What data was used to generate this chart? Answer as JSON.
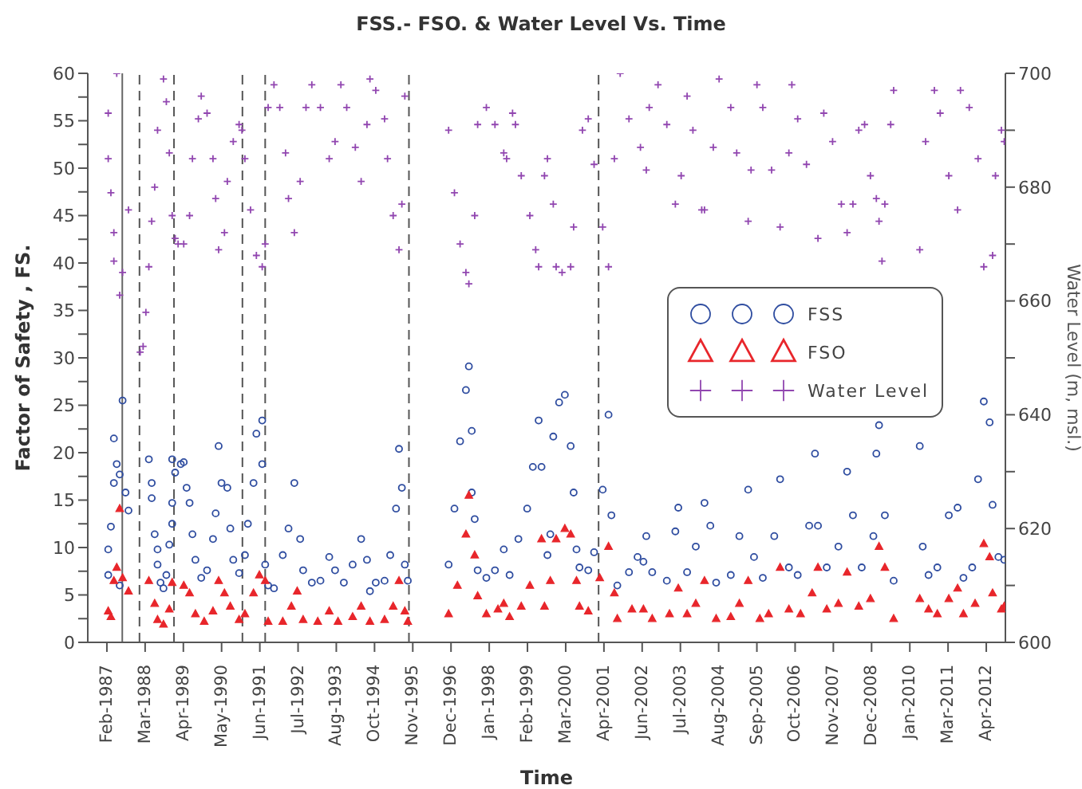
{
  "chart_data": {
    "type": "scatter",
    "title": "FSS.- FSO. & Water Level Vs. Time",
    "xlabel": "Time",
    "ylabel": "Factor of Safety , FS.",
    "y2label": "Water Level (m, msl.)",
    "xlim": [
      "1986-07-16",
      "2012-10-27"
    ],
    "xticks": [
      {
        "value": "1987-02-01",
        "label": "Feb-1987"
      },
      {
        "value": "1988-03-07",
        "label": "Mar-1988"
      },
      {
        "value": "1989-04-11",
        "label": "Apr-1989"
      },
      {
        "value": "1990-05-16",
        "label": "May-1990"
      },
      {
        "value": "1991-06-20",
        "label": "Jun-1991"
      },
      {
        "value": "1992-07-24",
        "label": "Jul-1992"
      },
      {
        "value": "1993-08-28",
        "label": "Aug-1993"
      },
      {
        "value": "1994-10-02",
        "label": "Oct-1994"
      },
      {
        "value": "1995-11-06",
        "label": "Nov-1995"
      },
      {
        "value": "1996-12-10",
        "label": "Dec-1996"
      },
      {
        "value": "1998-01-14",
        "label": "Jan-1998"
      },
      {
        "value": "1999-02-18",
        "label": "Feb-1999"
      },
      {
        "value": "2000-03-24",
        "label": "Mar-2000"
      },
      {
        "value": "2001-04-28",
        "label": "Apr-2001"
      },
      {
        "value": "2002-06-02",
        "label": "Jun-2002"
      },
      {
        "value": "2003-07-07",
        "label": "Jul-2003"
      },
      {
        "value": "2004-08-10",
        "label": "Aug-2004"
      },
      {
        "value": "2005-09-14",
        "label": "Sep-2005"
      },
      {
        "value": "2006-10-19",
        "label": "Oct-2006"
      },
      {
        "value": "2007-11-23",
        "label": "Nov-2007"
      },
      {
        "value": "2008-12-27",
        "label": "Dec-2008"
      },
      {
        "value": "2010-01-31",
        "label": "Jan-2010"
      },
      {
        "value": "2011-03-07",
        "label": "Mar-2011"
      },
      {
        "value": "2012-04-10",
        "label": "Apr-2012"
      }
    ],
    "ylim": [
      0,
      60
    ],
    "yticks": [
      0,
      {
        "value": 2.5,
        "label": null
      },
      5,
      {
        "value": 7.5,
        "label": null
      },
      10,
      {
        "value": 12.5,
        "label": null
      },
      15,
      {
        "value": 17.5,
        "label": null
      },
      20,
      {
        "value": 22.5,
        "label": null
      },
      25,
      {
        "value": 27.5,
        "label": null
      },
      30,
      {
        "value": 32.5,
        "label": null
      },
      35,
      {
        "value": 37.5,
        "label": null
      },
      40,
      {
        "value": 42.5,
        "label": null
      },
      45,
      {
        "value": 47.5,
        "label": null
      },
      50,
      {
        "value": 52.5,
        "label": null
      },
      55,
      {
        "value": 57.5,
        "label": null
      },
      60
    ],
    "y2lim": [
      600,
      700
    ],
    "y2ticks": [
      600,
      {
        "value": 610,
        "label": null
      },
      620,
      {
        "value": 630,
        "label": null
      },
      640,
      {
        "value": 650,
        "label": null
      },
      660,
      {
        "value": 670,
        "label": null
      },
      680,
      {
        "value": 690,
        "label": null
      },
      700
    ],
    "legend": "right",
    "series": [
      {
        "name": "FSS",
        "color": "#2f4da0",
        "marker": "circle",
        "x": [
          "1987-02",
          "1987-02",
          "1987-03",
          "1987-04",
          "1987-04",
          "1987-05",
          "1987-06",
          "1987-06",
          "1987-07",
          "1987-08",
          "1987-09",
          "1988-04",
          "1988-05",
          "1988-05",
          "1988-06",
          "1988-07",
          "1988-07",
          "1988-08",
          "1988-09",
          "1988-10",
          "1988-11",
          "1988-12",
          "1988-12",
          "1988-12",
          "1989-01",
          "1989-03",
          "1989-04",
          "1989-05",
          "1989-06",
          "1989-07",
          "1989-08",
          "1989-10",
          "1989-12",
          "1990-02",
          "1990-03",
          "1990-04",
          "1990-05",
          "1990-07",
          "1990-08",
          "1990-09",
          "1990-11",
          "1991-01",
          "1991-02",
          "1991-04",
          "1991-05",
          "1991-07",
          "1991-07",
          "1991-08",
          "1991-09",
          "1991-11",
          "1992-02",
          "1992-04",
          "1992-06",
          "1992-08",
          "1992-09",
          "1992-12",
          "1993-03",
          "1993-06",
          "1993-08",
          "1993-11",
          "1994-02",
          "1994-05",
          "1994-07",
          "1994-08",
          "1994-10",
          "1995-01",
          "1995-03",
          "1995-05",
          "1995-06",
          "1995-07",
          "1995-08",
          "1995-09",
          "1996-11",
          "1997-01",
          "1997-03",
          "1997-05",
          "1997-06",
          "1997-07",
          "1997-07",
          "1997-08",
          "1997-09",
          "1997-12",
          "1998-03",
          "1998-06",
          "1998-08",
          "1998-11",
          "1999-02",
          "1999-04",
          "1999-06",
          "1999-07",
          "1999-09",
          "1999-10",
          "1999-11",
          "2000-01",
          "2000-03",
          "2000-05",
          "2000-06",
          "2000-07",
          "2000-08",
          "2000-11",
          "2001-01",
          "2001-04",
          "2001-06",
          "2001-07",
          "2001-09",
          "2002-01",
          "2002-04",
          "2002-06",
          "2002-07",
          "2002-09",
          "2003-02",
          "2003-05",
          "2003-06",
          "2003-09",
          "2003-12",
          "2004-03",
          "2004-05",
          "2004-07",
          "2004-12",
          "2005-03",
          "2005-06",
          "2005-08",
          "2005-11",
          "2006-03",
          "2006-05",
          "2006-08",
          "2006-11",
          "2007-03",
          "2007-05",
          "2007-06",
          "2007-09",
          "2008-01",
          "2008-04",
          "2008-06",
          "2008-09",
          "2009-01",
          "2009-02",
          "2009-03",
          "2009-05",
          "2009-08",
          "2010-05",
          "2010-06",
          "2010-08",
          "2010-11",
          "2011-03",
          "2011-06",
          "2011-08",
          "2011-11",
          "2012-01",
          "2012-03",
          "2012-05",
          "2012-06",
          "2012-08",
          "2012-10"
        ],
        "values": [
          7.1,
          9.8,
          12.2,
          21.5,
          16.8,
          18.8,
          6.0,
          17.7,
          25.5,
          15.8,
          13.9,
          19.3,
          16.8,
          15.2,
          11.4,
          9.8,
          8.2,
          6.3,
          5.7,
          7.1,
          10.3,
          12.5,
          14.7,
          19.3,
          17.9,
          18.8,
          19.0,
          16.3,
          14.7,
          11.4,
          8.7,
          6.8,
          7.6,
          10.9,
          13.6,
          20.7,
          16.8,
          16.3,
          12.0,
          8.7,
          7.3,
          9.2,
          12.5,
          16.8,
          22.0,
          23.4,
          18.8,
          8.2,
          6.0,
          5.7,
          9.2,
          12.0,
          16.8,
          10.9,
          7.6,
          6.3,
          6.5,
          9.0,
          7.6,
          6.3,
          8.2,
          10.9,
          8.7,
          5.4,
          6.3,
          6.5,
          9.2,
          14.1,
          20.4,
          16.3,
          8.2,
          6.5,
          8.2,
          14.1,
          21.2,
          26.6,
          29.1,
          22.3,
          15.8,
          13.0,
          7.6,
          6.8,
          7.6,
          9.8,
          7.1,
          10.9,
          14.1,
          18.5,
          23.4,
          18.5,
          9.2,
          11.4,
          21.7,
          25.3,
          26.1,
          20.7,
          15.8,
          9.8,
          7.9,
          7.6,
          9.5,
          16.1,
          24.0,
          13.4,
          6.0,
          7.4,
          9.0,
          8.5,
          11.2,
          7.4,
          6.5,
          11.7,
          14.2,
          7.4,
          10.1,
          14.7,
          12.3,
          6.3,
          7.1,
          11.2,
          16.1,
          9.0,
          6.8,
          11.2,
          17.2,
          7.9,
          7.1,
          12.3,
          19.9,
          12.3,
          7.9,
          10.1,
          18.0,
          13.4,
          7.9,
          11.2,
          19.9,
          22.9,
          13.4,
          6.5,
          20.7,
          10.1,
          7.1,
          7.9,
          13.4,
          14.2,
          6.8,
          7.9,
          17.2,
          25.4,
          23.2,
          14.5,
          9.0,
          8.7
        ]
      },
      {
        "name": "FSO",
        "color": "#e8262b",
        "marker": "triangle",
        "x": [
          "1987-02",
          "1987-03",
          "1987-04",
          "1987-05",
          "1987-06",
          "1987-07",
          "1987-09",
          "1988-04",
          "1988-06",
          "1988-07",
          "1988-09",
          "1988-11",
          "1988-12",
          "1989-04",
          "1989-06",
          "1989-08",
          "1989-11",
          "1990-02",
          "1990-04",
          "1990-06",
          "1990-08",
          "1990-11",
          "1991-01",
          "1991-04",
          "1991-06",
          "1991-08",
          "1991-09",
          "1992-02",
          "1992-05",
          "1992-07",
          "1992-09",
          "1993-02",
          "1993-06",
          "1993-09",
          "1994-02",
          "1994-05",
          "1994-08",
          "1995-01",
          "1995-04",
          "1995-06",
          "1995-08",
          "1995-09",
          "1996-11",
          "1997-02",
          "1997-05",
          "1997-06",
          "1997-08",
          "1997-09",
          "1997-12",
          "1998-04",
          "1998-06",
          "1998-08",
          "1998-12",
          "1999-03",
          "1999-07",
          "1999-08",
          "1999-10",
          "1999-12",
          "2000-03",
          "2000-05",
          "2000-07",
          "2000-08",
          "2000-11",
          "2001-03",
          "2001-06",
          "2001-08",
          "2001-09",
          "2002-02",
          "2002-06",
          "2002-09",
          "2003-03",
          "2003-06",
          "2003-09",
          "2003-12",
          "2004-03",
          "2004-07",
          "2004-12",
          "2005-03",
          "2005-06",
          "2005-10",
          "2006-01",
          "2006-05",
          "2006-08",
          "2006-12",
          "2007-04",
          "2007-06",
          "2007-09",
          "2008-01",
          "2008-04",
          "2008-08",
          "2008-12",
          "2009-03",
          "2009-05",
          "2009-08",
          "2010-05",
          "2010-08",
          "2010-11",
          "2011-03",
          "2011-06",
          "2011-08",
          "2011-12",
          "2012-03",
          "2012-05",
          "2012-06",
          "2012-09",
          "2012-10"
        ],
        "values": [
          3.3,
          2.7,
          6.5,
          7.9,
          14.1,
          6.8,
          5.4,
          6.5,
          4.1,
          2.4,
          1.9,
          3.5,
          6.3,
          6.0,
          5.2,
          3.0,
          2.2,
          3.3,
          6.5,
          5.2,
          3.8,
          2.4,
          3.0,
          5.2,
          7.1,
          6.5,
          2.2,
          2.2,
          3.8,
          5.4,
          2.4,
          2.2,
          3.3,
          2.2,
          2.7,
          3.8,
          2.2,
          2.4,
          3.8,
          6.5,
          3.3,
          2.2,
          3.0,
          6.0,
          11.4,
          15.5,
          9.2,
          4.9,
          3.0,
          3.5,
          4.1,
          2.7,
          3.8,
          6.0,
          10.9,
          3.8,
          6.5,
          10.9,
          12.0,
          11.4,
          6.5,
          3.8,
          3.3,
          6.8,
          10.1,
          5.2,
          2.5,
          3.5,
          3.5,
          2.5,
          3.0,
          5.7,
          3.0,
          4.1,
          6.5,
          2.5,
          2.7,
          4.1,
          6.5,
          2.5,
          3.0,
          7.9,
          3.5,
          3.0,
          5.2,
          7.9,
          3.5,
          4.1,
          7.4,
          3.8,
          4.6,
          10.1,
          7.9,
          2.5,
          4.6,
          3.5,
          3.0,
          4.6,
          5.7,
          3.0,
          4.1,
          10.4,
          9.0,
          5.2,
          3.5,
          3.8
        ]
      },
      {
        "name": "Water Level",
        "color": "#9146b0",
        "marker": "cross",
        "axis": "y2",
        "x": [
          "1987-02",
          "1987-02",
          "1987-03",
          "1987-04",
          "1987-04",
          "1987-05",
          "1987-06",
          "1987-07",
          "1987-09",
          "1988-01",
          "1988-02",
          "1988-03",
          "1988-04",
          "1988-05",
          "1988-06",
          "1988-07",
          "1988-09",
          "1988-10",
          "1988-11",
          "1988-12",
          "1989-01",
          "1989-02",
          "1989-04",
          "1989-06",
          "1989-07",
          "1989-09",
          "1989-10",
          "1989-12",
          "1990-02",
          "1990-03",
          "1990-04",
          "1990-06",
          "1990-07",
          "1990-09",
          "1990-11",
          "1990-12",
          "1991-01",
          "1991-03",
          "1991-05",
          "1991-07",
          "1991-08",
          "1991-09",
          "1991-11",
          "1992-01",
          "1992-03",
          "1992-04",
          "1992-06",
          "1992-08",
          "1992-10",
          "1992-12",
          "1993-03",
          "1993-06",
          "1993-08",
          "1993-10",
          "1993-12",
          "1994-03",
          "1994-05",
          "1994-07",
          "1994-08",
          "1994-10",
          "1995-01",
          "1995-02",
          "1995-04",
          "1995-06",
          "1995-07",
          "1995-08",
          "1996-11",
          "1997-01",
          "1997-03",
          "1997-05",
          "1997-06",
          "1997-08",
          "1997-09",
          "1997-12",
          "1998-03",
          "1998-06",
          "1998-07",
          "1998-09",
          "1998-10",
          "1998-12",
          "1999-03",
          "1999-05",
          "1999-06",
          "1999-08",
          "1999-09",
          "1999-11",
          "1999-12",
          "2000-02",
          "2000-05",
          "2000-06",
          "2000-09",
          "2000-11",
          "2001-01",
          "2001-04",
          "2001-06",
          "2001-08",
          "2001-10",
          "2002-01",
          "2002-05",
          "2002-07",
          "2002-08",
          "2002-11",
          "2003-02",
          "2003-05",
          "2003-07",
          "2003-09",
          "2003-11",
          "2004-02",
          "2004-03",
          "2004-06",
          "2004-08",
          "2004-12",
          "2005-02",
          "2005-06",
          "2005-07",
          "2005-09",
          "2005-11",
          "2006-02",
          "2006-05",
          "2006-08",
          "2006-09",
          "2006-11",
          "2007-02",
          "2007-06",
          "2007-08",
          "2007-11",
          "2008-02",
          "2008-04",
          "2008-06",
          "2008-08",
          "2008-10",
          "2008-12",
          "2009-02",
          "2009-03",
          "2009-04",
          "2009-05",
          "2009-07",
          "2009-08",
          "2010-05",
          "2010-07",
          "2010-10",
          "2010-12",
          "2011-03",
          "2011-06",
          "2011-07",
          "2011-10",
          "2012-01",
          "2012-03",
          "2012-06",
          "2012-07",
          "2012-09",
          "2012-10"
        ],
        "values": [
          693,
          685,
          679,
          672,
          667,
          700,
          661,
          665,
          676,
          651,
          652,
          658,
          666,
          674,
          680,
          690,
          699,
          695,
          686,
          675,
          671,
          670,
          670,
          675,
          685,
          692,
          696,
          693,
          685,
          678,
          669,
          672,
          681,
          688,
          691,
          690,
          685,
          676,
          668,
          666,
          670,
          694,
          698,
          694,
          686,
          678,
          672,
          681,
          694,
          698,
          694,
          685,
          688,
          698,
          694,
          687,
          681,
          691,
          699,
          697,
          692,
          685,
          675,
          669,
          677,
          696,
          690,
          679,
          670,
          665,
          663,
          675,
          691,
          694,
          691,
          686,
          685,
          693,
          691,
          682,
          675,
          669,
          666,
          682,
          685,
          677,
          666,
          665,
          666,
          673,
          690,
          692,
          684,
          673,
          666,
          685,
          700,
          692,
          687,
          683,
          694,
          698,
          691,
          677,
          682,
          696,
          690,
          676,
          676,
          687,
          699,
          694,
          686,
          674,
          683,
          698,
          694,
          683,
          673,
          686,
          698,
          692,
          684,
          671,
          693,
          688,
          677,
          672,
          677,
          690,
          691,
          682,
          678,
          674,
          667,
          677,
          691,
          697,
          669,
          688,
          697,
          693,
          682,
          676,
          697,
          694,
          685,
          666,
          668,
          682,
          690,
          688
        ]
      }
    ],
    "ref_lines": [
      {
        "axis": "x",
        "value": "1987-07-12",
        "color": "#666666",
        "line_style": "solid"
      },
      {
        "axis": "x",
        "value": "1988-01-08",
        "color": "#555555",
        "line_style": "dashed"
      },
      {
        "axis": "x",
        "value": "1989-01-03",
        "color": "#555555",
        "line_style": "dashed"
      },
      {
        "axis": "x",
        "value": "1990-12-20",
        "color": "#555555",
        "line_style": "dashed"
      },
      {
        "axis": "x",
        "value": "1991-08-15",
        "color": "#555555",
        "line_style": "dashed"
      },
      {
        "axis": "x",
        "value": "1995-09-27",
        "color": "#555555",
        "line_style": "dashed"
      },
      {
        "axis": "x",
        "value": "2001-03-03",
        "color": "#555555",
        "line_style": "dashed"
      }
    ]
  }
}
